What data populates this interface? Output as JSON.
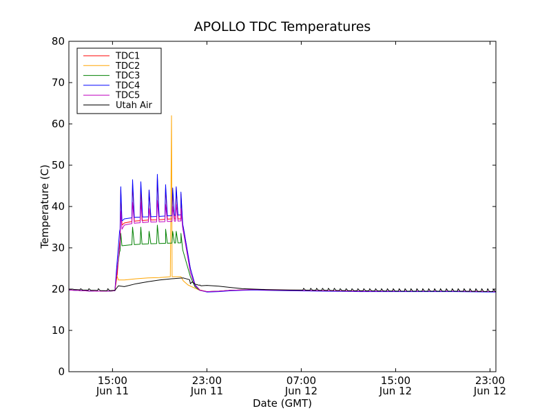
{
  "chart_data": {
    "type": "line",
    "title": "APOLLO TDC Temperatures",
    "xlabel": "Date (GMT)",
    "ylabel": "Temperature (C)",
    "xunit": "hours since Jun 11 00:00 GMT",
    "xlim": [
      11.3,
      47.5
    ],
    "ylim": [
      0,
      80
    ],
    "yticks": [
      0,
      10,
      20,
      30,
      40,
      50,
      60,
      70,
      80
    ],
    "xticks": [
      {
        "value": 15,
        "line1": "15:00",
        "line2": "Jun 11"
      },
      {
        "value": 23,
        "line1": "23:00",
        "line2": "Jun 11"
      },
      {
        "value": 31,
        "line1": "07:00",
        "line2": "Jun 12"
      },
      {
        "value": 39,
        "line1": "15:00",
        "line2": "Jun 12"
      },
      {
        "value": 47,
        "line1": "23:00",
        "line2": "Jun 12"
      }
    ],
    "legend_position": "top-left",
    "series": [
      {
        "name": "TDC1",
        "color": "#ff0000",
        "points": [
          [
            11.3,
            19.8
          ],
          [
            12.5,
            19.6
          ],
          [
            13.5,
            19.5
          ],
          [
            14.5,
            19.5
          ],
          [
            15.2,
            19.6
          ],
          [
            15.4,
            23.5
          ],
          [
            15.6,
            31
          ],
          [
            15.8,
            35.5
          ],
          [
            16,
            36
          ],
          [
            16.5,
            36.3
          ],
          [
            17,
            36.5
          ],
          [
            17.5,
            36.6
          ],
          [
            18,
            36.7
          ],
          [
            19,
            36.8
          ],
          [
            20,
            37
          ],
          [
            20.8,
            37
          ],
          [
            21,
            35
          ],
          [
            21.3,
            30
          ],
          [
            21.6,
            25
          ],
          [
            22,
            21
          ],
          [
            22.4,
            19.8
          ],
          [
            23,
            19.4
          ],
          [
            24,
            19.5
          ],
          [
            25,
            19.7
          ],
          [
            26,
            19.8
          ],
          [
            27,
            19.9
          ],
          [
            28,
            19.8
          ],
          [
            30,
            19.7
          ],
          [
            33,
            19.6
          ],
          [
            36,
            19.5
          ],
          [
            40,
            19.5
          ],
          [
            44,
            19.5
          ],
          [
            47.5,
            19.4
          ]
        ],
        "spikes": [
          [
            15.7,
            44
          ],
          [
            16.7,
            45.5
          ],
          [
            17.4,
            45
          ],
          [
            18.1,
            44
          ],
          [
            18.8,
            47
          ],
          [
            19.5,
            44.5
          ],
          [
            20.1,
            44
          ],
          [
            20.4,
            44.5
          ],
          [
            20.8,
            43
          ]
        ]
      },
      {
        "name": "TDC2",
        "color": "#ffa500",
        "points": [
          [
            11.3,
            19.8
          ],
          [
            12.5,
            19.6
          ],
          [
            13.5,
            19.5
          ],
          [
            14.5,
            19.5
          ],
          [
            15.2,
            19.6
          ],
          [
            15.35,
            23.5
          ],
          [
            15.5,
            22.2
          ],
          [
            16,
            22.2
          ],
          [
            17,
            22.5
          ],
          [
            18,
            22.7
          ],
          [
            19,
            22.8
          ],
          [
            19.9,
            23
          ],
          [
            20,
            62
          ],
          [
            20.05,
            23
          ],
          [
            20.8,
            23
          ],
          [
            21,
            22
          ],
          [
            21.4,
            21
          ],
          [
            22,
            20.2
          ],
          [
            22.4,
            19.7
          ],
          [
            23,
            19.4
          ],
          [
            24,
            19.5
          ],
          [
            25,
            19.7
          ],
          [
            26,
            19.8
          ],
          [
            27,
            19.9
          ],
          [
            28,
            19.8
          ],
          [
            30,
            19.7
          ],
          [
            33,
            19.6
          ],
          [
            36,
            19.5
          ],
          [
            40,
            19.5
          ],
          [
            44,
            19.5
          ],
          [
            47.5,
            19.4
          ]
        ],
        "spikes": []
      },
      {
        "name": "TDC3",
        "color": "#008000",
        "points": [
          [
            11.3,
            19.8
          ],
          [
            12.5,
            19.6
          ],
          [
            13.5,
            19.5
          ],
          [
            14.5,
            19.5
          ],
          [
            15.2,
            19.6
          ],
          [
            15.4,
            25
          ],
          [
            15.6,
            29
          ],
          [
            15.8,
            30.5
          ],
          [
            16.5,
            30.7
          ],
          [
            17.5,
            30.9
          ],
          [
            18.5,
            31
          ],
          [
            19.5,
            31.1
          ],
          [
            20.8,
            31.2
          ],
          [
            21,
            29
          ],
          [
            21.3,
            26
          ],
          [
            21.6,
            23
          ],
          [
            22,
            20.5
          ],
          [
            22.4,
            19.7
          ],
          [
            23,
            19.4
          ],
          [
            24,
            19.5
          ],
          [
            25,
            19.7
          ],
          [
            26,
            19.8
          ],
          [
            27,
            19.9
          ],
          [
            28,
            19.8
          ],
          [
            30,
            19.7
          ],
          [
            33,
            19.6
          ],
          [
            36,
            19.5
          ],
          [
            40,
            19.5
          ],
          [
            44,
            19.5
          ],
          [
            47.5,
            19.4
          ]
        ],
        "spikes": [
          [
            15.7,
            33.5
          ],
          [
            16.7,
            35
          ],
          [
            17.4,
            35
          ],
          [
            18.1,
            34
          ],
          [
            18.8,
            35.5
          ],
          [
            19.5,
            34.5
          ],
          [
            20.1,
            34
          ],
          [
            20.4,
            34
          ],
          [
            20.8,
            33.5
          ]
        ]
      },
      {
        "name": "TDC4",
        "color": "#0000ff",
        "points": [
          [
            11.3,
            19.8
          ],
          [
            12.5,
            19.6
          ],
          [
            13.5,
            19.5
          ],
          [
            14.5,
            19.5
          ],
          [
            15.2,
            19.6
          ],
          [
            15.4,
            27
          ],
          [
            15.6,
            34
          ],
          [
            15.8,
            36.5
          ],
          [
            16,
            37
          ],
          [
            16.5,
            37.2
          ],
          [
            17,
            37.4
          ],
          [
            18,
            37.5
          ],
          [
            19,
            37.6
          ],
          [
            20,
            37.8
          ],
          [
            20.8,
            38
          ],
          [
            21,
            35
          ],
          [
            21.3,
            30
          ],
          [
            21.6,
            25
          ],
          [
            22,
            21
          ],
          [
            22.4,
            19.7
          ],
          [
            23,
            19.3
          ],
          [
            24,
            19.4
          ],
          [
            25,
            19.6
          ],
          [
            26,
            19.7
          ],
          [
            27,
            19.8
          ],
          [
            28,
            19.7
          ],
          [
            30,
            19.6
          ],
          [
            33,
            19.5
          ],
          [
            36,
            19.4
          ],
          [
            40,
            19.4
          ],
          [
            44,
            19.4
          ],
          [
            47.5,
            19.3
          ]
        ],
        "spikes": [
          [
            15.7,
            44.8
          ],
          [
            16.7,
            46.5
          ],
          [
            17.4,
            46
          ],
          [
            18.1,
            44
          ],
          [
            18.8,
            47.8
          ],
          [
            19.5,
            45.3
          ],
          [
            20.1,
            44.5
          ],
          [
            20.4,
            44.8
          ],
          [
            20.8,
            43.5
          ]
        ]
      },
      {
        "name": "TDC5",
        "color": "#bf00bf",
        "points": [
          [
            11.3,
            19.8
          ],
          [
            12.5,
            19.6
          ],
          [
            13.5,
            19.5
          ],
          [
            14.5,
            19.5
          ],
          [
            15.2,
            19.6
          ],
          [
            15.4,
            25
          ],
          [
            15.6,
            30
          ],
          [
            15.8,
            34.5
          ],
          [
            16,
            35.5
          ],
          [
            16.5,
            35.8
          ],
          [
            17,
            36
          ],
          [
            18,
            36.2
          ],
          [
            19,
            36.3
          ],
          [
            20,
            36.4
          ],
          [
            20.8,
            36.5
          ],
          [
            21,
            34
          ],
          [
            21.3,
            29
          ],
          [
            21.6,
            24
          ],
          [
            22,
            20.8
          ],
          [
            22.4,
            19.7
          ],
          [
            23,
            19.4
          ],
          [
            24,
            19.5
          ],
          [
            25,
            19.7
          ],
          [
            26,
            19.8
          ],
          [
            27,
            19.9
          ],
          [
            28,
            19.8
          ],
          [
            30,
            19.7
          ],
          [
            33,
            19.6
          ],
          [
            36,
            19.5
          ],
          [
            40,
            19.5
          ],
          [
            44,
            19.5
          ],
          [
            47.5,
            19.4
          ]
        ],
        "spikes": [
          [
            15.7,
            39
          ],
          [
            16.7,
            41
          ],
          [
            17.4,
            41
          ],
          [
            18.1,
            39.5
          ],
          [
            18.8,
            41.5
          ],
          [
            19.5,
            40.5
          ],
          [
            20.1,
            40
          ],
          [
            20.4,
            40.5
          ],
          [
            20.8,
            39.5
          ]
        ]
      },
      {
        "name": "Utah Air",
        "color": "#000000",
        "points": [
          [
            11.3,
            20
          ],
          [
            12.5,
            19.8
          ],
          [
            13.5,
            19.7
          ],
          [
            14.5,
            19.6
          ],
          [
            15.2,
            19.7
          ],
          [
            15.5,
            20.8
          ],
          [
            16,
            20.6
          ],
          [
            17,
            21.3
          ],
          [
            18,
            21.8
          ],
          [
            19,
            22.2
          ],
          [
            20,
            22.5
          ],
          [
            20.5,
            22.6
          ],
          [
            21,
            22.7
          ],
          [
            21.5,
            22.3
          ],
          [
            22,
            21.2
          ],
          [
            22.5,
            20.8
          ],
          [
            23,
            20.9
          ],
          [
            24,
            20.7
          ],
          [
            25,
            20.4
          ],
          [
            26,
            20.1
          ],
          [
            28,
            19.9
          ],
          [
            30,
            19.8
          ],
          [
            33,
            19.7
          ],
          [
            36,
            19.6
          ],
          [
            40,
            19.5
          ],
          [
            44,
            19.5
          ],
          [
            47.5,
            19.4
          ]
        ],
        "spikes": [
          [
            11.6,
            20
          ],
          [
            12.3,
            20.1
          ],
          [
            13,
            20.1
          ],
          [
            13.8,
            20.1
          ],
          [
            14.6,
            20.1
          ],
          [
            21.6,
            21.3
          ],
          [
            22,
            21.2
          ],
          [
            22.4,
            21
          ],
          [
            31.2,
            20.2
          ],
          [
            31.8,
            20.2
          ],
          [
            32.3,
            20.2
          ],
          [
            32.8,
            20.2
          ],
          [
            33.3,
            20.2
          ],
          [
            33.8,
            20.2
          ],
          [
            34.3,
            20.1
          ],
          [
            34.8,
            20.1
          ],
          [
            35.3,
            20.1
          ],
          [
            35.8,
            20.1
          ],
          [
            36.3,
            20.1
          ],
          [
            36.8,
            20.1
          ],
          [
            37.3,
            20.1
          ],
          [
            37.8,
            20.1
          ],
          [
            38.3,
            20.1
          ],
          [
            38.8,
            20.1
          ],
          [
            39.3,
            20.1
          ],
          [
            39.8,
            20.1
          ],
          [
            40.3,
            20.1
          ],
          [
            40.8,
            20.1
          ],
          [
            41.3,
            20.1
          ],
          [
            41.8,
            20.1
          ],
          [
            42.3,
            20.1
          ],
          [
            42.8,
            20.1
          ],
          [
            43.3,
            20.1
          ],
          [
            43.8,
            20.1
          ],
          [
            44.3,
            20.1
          ],
          [
            44.8,
            20.1
          ],
          [
            45.3,
            20.1
          ],
          [
            45.8,
            20.1
          ],
          [
            46.3,
            20.1
          ],
          [
            46.8,
            20.1
          ],
          [
            47.3,
            20
          ]
        ]
      }
    ]
  }
}
